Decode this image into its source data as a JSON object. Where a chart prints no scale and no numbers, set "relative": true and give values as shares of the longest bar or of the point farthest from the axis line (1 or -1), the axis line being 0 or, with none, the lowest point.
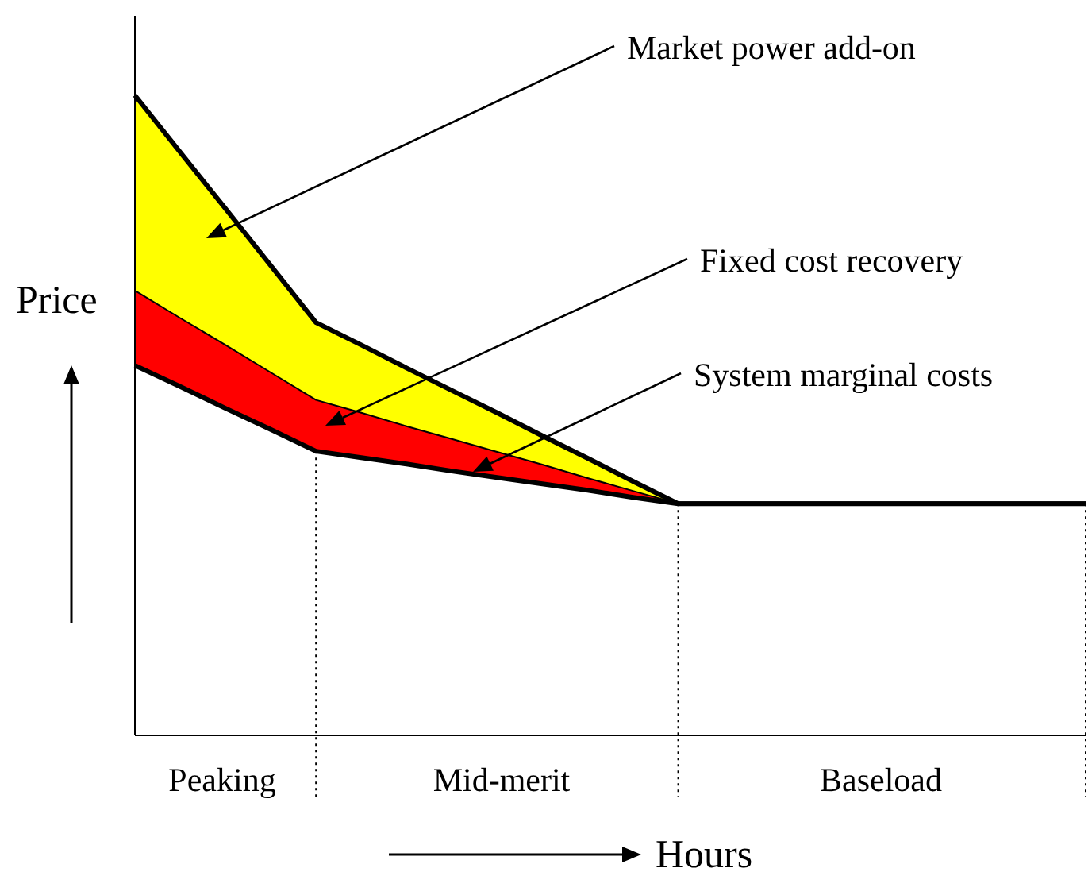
{
  "chart_data": {
    "type": "area",
    "relative": true,
    "xlabel": "Hours",
    "ylabel": "Price",
    "categories": [
      null,
      null,
      null,
      null,
      null,
      null,
      null,
      null,
      null,
      null,
      null,
      null,
      null,
      null,
      null,
      null,
      null,
      null,
      null,
      null,
      null,
      null
    ],
    "series": [
      {
        "color": "#ffff00",
        "values": [
          1,
          0.911,
          0.823,
          0.734,
          0.645,
          0.61,
          0.574,
          0.539,
          0.504,
          0.468,
          0.433,
          0.397,
          0.362,
          0.362,
          0.362,
          0.362,
          0.362,
          0.362,
          0.362,
          0.362,
          0.362,
          0.362
        ]
      },
      {
        "color": "#ff0000",
        "values": [
          0.695,
          0.652,
          0.61,
          0.567,
          0.524,
          0.504,
          0.483,
          0.463,
          0.443,
          0.423,
          0.402,
          0.382,
          0.362,
          null,
          null,
          null,
          null,
          null,
          null,
          null,
          null,
          null
        ]
      },
      {
        "color": "#ffffff",
        "values": [
          0.578,
          0.545,
          0.511,
          0.478,
          0.444,
          0.434,
          0.424,
          0.413,
          0.403,
          0.393,
          0.383,
          0.372,
          0.362,
          0.362,
          0.362,
          0.362,
          0.362,
          0.362,
          0.362,
          0.362,
          0.362,
          0.362
        ]
      }
    ],
    "annotations": [
      "Market power add-on",
      "Fixed cost recovery",
      "System marginal costs",
      "Peaking",
      "Mid-merit",
      "Baseload"
    ],
    "grid": false,
    "line_style": "solid",
    "marker": "none"
  }
}
